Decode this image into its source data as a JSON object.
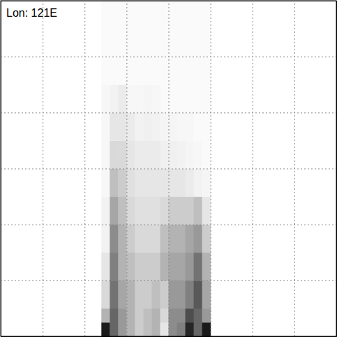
{
  "chart_data": {
    "type": "heatmap",
    "title": "Lon: 121E",
    "xlim": [
      0,
      8
    ],
    "ylim": [
      0,
      6
    ],
    "xticks": [
      1,
      2,
      3,
      4,
      5,
      6,
      7
    ],
    "yticks": [
      1,
      2,
      3,
      4,
      5
    ],
    "grid": true,
    "tick_labels": false,
    "x_bins": [
      2.4,
      2.6,
      2.8,
      3.0,
      3.2,
      3.4,
      3.6,
      3.8,
      4.0,
      4.2,
      4.4,
      4.6,
      4.8,
      5.0
    ],
    "y_bins": [
      0,
      0.25,
      0.5,
      1,
      1.5,
      2,
      2.5,
      3,
      3.5,
      4,
      4.5,
      6
    ],
    "zlim": [
      0,
      1
    ],
    "z": [
      [
        0.9,
        0.6,
        0.4,
        0.3,
        0.2,
        0.25,
        0.3,
        0.1,
        0.45,
        0.5,
        0.85,
        0.6,
        0.9
      ],
      [
        0.3,
        0.6,
        0.4,
        0.3,
        0.2,
        0.25,
        0.3,
        0.15,
        0.45,
        0.45,
        0.7,
        0.6,
        0.4
      ],
      [
        0.15,
        0.55,
        0.35,
        0.3,
        0.2,
        0.2,
        0.25,
        0.2,
        0.4,
        0.4,
        0.5,
        0.65,
        0.35
      ],
      [
        0.1,
        0.5,
        0.3,
        0.25,
        0.2,
        0.2,
        0.2,
        0.3,
        0.35,
        0.35,
        0.4,
        0.55,
        0.3
      ],
      [
        0.05,
        0.45,
        0.3,
        0.2,
        0.15,
        0.15,
        0.15,
        0.25,
        0.3,
        0.3,
        0.35,
        0.4,
        0.2
      ],
      [
        0.05,
        0.35,
        0.25,
        0.15,
        0.12,
        0.12,
        0.12,
        0.15,
        0.2,
        0.2,
        0.2,
        0.25,
        0.1
      ],
      [
        0.03,
        0.25,
        0.2,
        0.12,
        0.1,
        0.1,
        0.1,
        0.1,
        0.1,
        0.1,
        0.08,
        0.05,
        0.04
      ],
      [
        0.03,
        0.15,
        0.15,
        0.1,
        0.08,
        0.08,
        0.08,
        0.06,
        0.06,
        0.05,
        0.04,
        0.03,
        0.02
      ],
      [
        0.03,
        0.1,
        0.1,
        0.08,
        0.05,
        0.06,
        0.05,
        0.04,
        0.04,
        0.03,
        0.03,
        0.02,
        0.02
      ],
      [
        0.03,
        0.05,
        0.08,
        0.03,
        0.03,
        0.04,
        0.03,
        0.02,
        0.02,
        0.02,
        0.02,
        0.02,
        0.02
      ],
      [
        0.02,
        0.02,
        0.02,
        0.02,
        0.02,
        0.02,
        0.02,
        0.02,
        0.02,
        0.02,
        0.02,
        0.02,
        0.02
      ]
    ]
  }
}
